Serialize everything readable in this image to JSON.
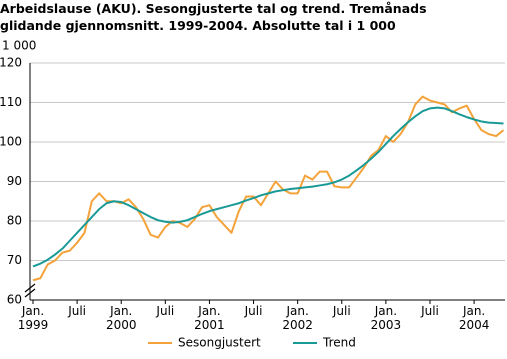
{
  "chart_data": {
    "type": "line",
    "title": "Arbeidslause (AKU). Sesongjusterte tal og trend. Tremånads glidande gjennomsnitt. 1999-2004. Absolutte tal i 1 000",
    "y_unit": "1 000",
    "categories": [
      "Jan.\n1999",
      null,
      null,
      null,
      null,
      null,
      "Juli",
      null,
      null,
      null,
      null,
      null,
      "Jan.\n2000",
      null,
      null,
      null,
      null,
      null,
      "Juli",
      null,
      null,
      null,
      null,
      null,
      "Jan.\n2001",
      null,
      null,
      null,
      null,
      null,
      "Juli",
      null,
      null,
      null,
      null,
      null,
      "Jan.\n2002",
      null,
      null,
      null,
      null,
      null,
      "Juli",
      null,
      null,
      null,
      null,
      null,
      "Jan.\n2003",
      null,
      null,
      null,
      null,
      null,
      "Juli",
      null,
      null,
      null,
      null,
      null,
      "Jan.\n2004",
      null,
      null,
      null,
      null
    ],
    "series": [
      {
        "name": "Sesongjustert",
        "color": "#f4a23a",
        "values": [
          65,
          65.5,
          69,
          70,
          72,
          72.5,
          74.5,
          77,
          85,
          87,
          85,
          85,
          84.5,
          85.5,
          83.5,
          80.5,
          76.5,
          75.8,
          78.5,
          80,
          79.5,
          78.5,
          80.5,
          83.5,
          84,
          81,
          79,
          77,
          82.5,
          86.2,
          86.2,
          84,
          87,
          90,
          88,
          87,
          87,
          91.5,
          90.5,
          92.5,
          92.5,
          88.8,
          88.5,
          88.5,
          91,
          93.5,
          96.5,
          98,
          101.5,
          100,
          102,
          105,
          109.5,
          111.5,
          110.5,
          110,
          109.5,
          107.5,
          108.5,
          109.2,
          105.8,
          103,
          102,
          101.5,
          103
        ]
      },
      {
        "name": "Trend",
        "color": "#1a9a96",
        "values": [
          68.5,
          69.2,
          70.2,
          71.5,
          73,
          75,
          77,
          79,
          81,
          83,
          84.5,
          85,
          84.8,
          84,
          83,
          82,
          81,
          80.2,
          79.8,
          79.6,
          79.8,
          80.2,
          81,
          81.8,
          82.5,
          83,
          83.5,
          84,
          84.5,
          85.2,
          85.8,
          86.5,
          87,
          87.5,
          87.8,
          88.1,
          88.3,
          88.5,
          88.7,
          89,
          89.3,
          89.8,
          90.5,
          91.5,
          92.8,
          94.2,
          95.8,
          97.5,
          99.5,
          101.5,
          103.3,
          105,
          106.5,
          107.8,
          108.5,
          108.7,
          108.5,
          107.8,
          107,
          106.3,
          105.7,
          105.2,
          104.9,
          104.8,
          104.7
        ]
      }
    ],
    "ylim": [
      60,
      120
    ],
    "yticks": [
      60,
      70,
      80,
      90,
      100,
      110,
      120
    ],
    "grid": true
  }
}
